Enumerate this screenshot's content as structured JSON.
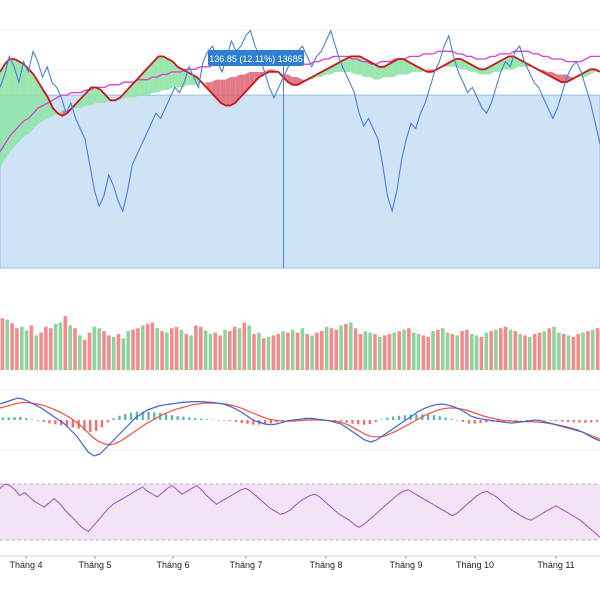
{
  "colors": {
    "background": "#ffffff",
    "range_band": "#cfe3f7",
    "price_line": "#4a7fd6",
    "ma_fast": "#c61818",
    "ma_slow": "#d93fd0",
    "cloud_bull": "#8fe3a6",
    "cloud_bear": "#e06a78",
    "vol_up": "#8fd29b",
    "vol_down": "#f28b8b",
    "macd_line": "#3e63d6",
    "signal_line": "#f0503c",
    "hist_up": "#5ab3b0",
    "hist_down": "#f06b6b",
    "rsi_band": "#f3e3f6",
    "rsi_line": "#a35ec0",
    "grid": "#eef0f3",
    "crosshair": "#4a7fd6",
    "tooltip_bg": "#2f7fd0",
    "tooltip_text": "#ffffff",
    "axis_text": "#222222"
  },
  "tooltip": {
    "text": "136.85 (12.11%) 13685"
  },
  "x_axis": {
    "ticks": [
      "Tháng 4",
      "Tháng 5",
      "Tháng 6",
      "Tháng 7",
      "Tháng 8",
      "Tháng 9",
      "Tháng 10",
      "Tháng 11"
    ]
  },
  "chart_data": [
    {
      "type": "line",
      "panel": "price",
      "title": "",
      "xlabel": "",
      "ylabel": "",
      "ylim": [
        0,
        100
      ],
      "x_ticks": [
        "Tháng 4",
        "Tháng 5",
        "Tháng 6",
        "Tháng 7",
        "Tháng 8",
        "Tháng 9",
        "Tháng 10",
        "Tháng 11"
      ],
      "highlight_band": [
        0,
        67
      ],
      "crosshair_index": 60,
      "series": [
        {
          "values": [
            70,
            75,
            82,
            78,
            72,
            80,
            76,
            84,
            80,
            74,
            78,
            72,
            70,
            66,
            60,
            64,
            58,
            54,
            50,
            40,
            30,
            24,
            28,
            36,
            32,
            26,
            22,
            30,
            40,
            44,
            48,
            52,
            56,
            60,
            58,
            62,
            66,
            70,
            68,
            72,
            78,
            74,
            70,
            80,
            84,
            86,
            80,
            76,
            82,
            88,
            84,
            86,
            90,
            92,
            86,
            82,
            76,
            70,
            66,
            70,
            74,
            78,
            80,
            84,
            86,
            82,
            78,
            82,
            84,
            88,
            92,
            86,
            80,
            76,
            72,
            68,
            60,
            55,
            58,
            54,
            50,
            40,
            28,
            22,
            30,
            42,
            50,
            56,
            54,
            60,
            64,
            70,
            76,
            80,
            86,
            90,
            82,
            76,
            72,
            68,
            70,
            66,
            62,
            60,
            64,
            70,
            76,
            80,
            78,
            84,
            86,
            80,
            76,
            72,
            70,
            66,
            62,
            58,
            62,
            68,
            74,
            78,
            80,
            76,
            70,
            64,
            56,
            48
          ]
        },
        {
          "values": [
            76,
            79,
            81,
            81,
            80,
            79,
            77,
            75,
            72,
            69,
            66,
            62,
            60,
            59,
            60,
            62,
            64,
            66,
            68,
            70,
            70,
            69,
            67,
            65,
            65,
            66,
            68,
            70,
            72,
            74,
            76,
            78,
            80,
            82,
            82,
            81,
            80,
            78,
            77,
            76,
            75,
            74,
            72,
            70,
            68,
            66,
            64,
            63,
            63,
            64,
            66,
            68,
            70,
            72,
            74,
            75,
            76,
            76,
            76,
            74,
            72,
            71,
            71,
            72,
            73,
            74,
            75,
            76,
            77,
            78,
            79,
            80,
            81,
            82,
            82,
            82,
            81,
            80,
            79,
            78,
            78,
            79,
            80,
            81,
            81,
            80,
            79,
            78,
            77,
            76,
            76,
            77,
            78,
            79,
            80,
            81,
            81,
            80,
            79,
            78,
            77,
            77,
            78,
            79,
            80,
            81,
            82,
            82,
            81,
            80,
            79,
            78,
            77,
            76,
            75,
            74,
            73,
            72,
            72,
            73,
            74,
            75,
            76,
            77,
            77,
            76
          ]
        },
        {
          "values": [
            45,
            48,
            51,
            53,
            55,
            57,
            58,
            60,
            62,
            63,
            64,
            65,
            66,
            67,
            67,
            68,
            68,
            68,
            69,
            69,
            70,
            70,
            70,
            71,
            71,
            71,
            72,
            72,
            72,
            73,
            73,
            73,
            74,
            74,
            75,
            75,
            76,
            76,
            76,
            77,
            77,
            77,
            78,
            78,
            78,
            79,
            79,
            79,
            80,
            80,
            81,
            81,
            82,
            82,
            82,
            82,
            83,
            83,
            82,
            81,
            81,
            80,
            80,
            79,
            79,
            79,
            80,
            80,
            81,
            81,
            82,
            82,
            82,
            82,
            81,
            81,
            80,
            80,
            79,
            79,
            80,
            80,
            80,
            81,
            81,
            81,
            82,
            82,
            82,
            83,
            83,
            83,
            84,
            84,
            84,
            84,
            83,
            83,
            82,
            82,
            81,
            81,
            81,
            82,
            82,
            83,
            83,
            83,
            84,
            84,
            84,
            84,
            83,
            83,
            82,
            82,
            81,
            81,
            81,
            80,
            80,
            80,
            80,
            81,
            82,
            82,
            82
          ]
        }
      ]
    },
    {
      "type": "bar",
      "panel": "volume",
      "title": "",
      "ylim": [
        0,
        100
      ],
      "values": [
        72,
        70,
        65,
        58,
        60,
        55,
        62,
        48,
        52,
        60,
        58,
        64,
        66,
        75,
        62,
        58,
        48,
        42,
        52,
        60,
        58,
        54,
        48,
        46,
        50,
        44,
        54,
        56,
        58,
        62,
        64,
        66,
        58,
        54,
        52,
        58,
        60,
        56,
        50,
        48,
        62,
        60,
        55,
        50,
        52,
        48,
        56,
        54,
        60,
        58,
        66,
        62,
        50,
        52,
        44,
        46,
        48,
        50,
        54,
        52,
        56,
        52,
        58,
        50,
        48,
        52,
        54,
        60,
        58,
        56,
        62,
        64,
        66,
        58,
        50,
        54,
        52,
        50,
        46,
        48,
        50,
        52,
        54,
        56,
        58,
        52,
        50,
        48,
        46,
        54,
        56,
        58,
        52,
        50,
        48,
        54,
        56,
        50,
        48,
        46,
        52,
        54,
        56,
        58,
        60,
        56,
        54,
        50,
        48,
        46,
        50,
        52,
        54,
        58,
        60,
        52,
        50,
        48,
        46,
        50,
        52,
        54,
        56,
        58
      ],
      "up": [
        0,
        1,
        0,
        0,
        1,
        1,
        0,
        1,
        0,
        0,
        0,
        1,
        1,
        0,
        1,
        0,
        1,
        0,
        0,
        1,
        1,
        0,
        0,
        1,
        0,
        1,
        1,
        0,
        0,
        1,
        0,
        0,
        1,
        0,
        1,
        0,
        0,
        1,
        0,
        1,
        0,
        0,
        1,
        1,
        0,
        0,
        1,
        0,
        0,
        1,
        0,
        1,
        0,
        1,
        0,
        1,
        0,
        0,
        1,
        0,
        1,
        0,
        1,
        0,
        1,
        0,
        0,
        1,
        0,
        0,
        1,
        0,
        1,
        0,
        0,
        1,
        1,
        0,
        1,
        0,
        0,
        1,
        0,
        1,
        0,
        1,
        1,
        0,
        0,
        1,
        0,
        1,
        1,
        0,
        1,
        0,
        0,
        1,
        1,
        0,
        1,
        0,
        1,
        0,
        0,
        1,
        0,
        1,
        0,
        1,
        0,
        0,
        1,
        0,
        1,
        1,
        0,
        1,
        0,
        0,
        1,
        0,
        1
      ]
    },
    {
      "type": "line",
      "panel": "macd",
      "title": "",
      "ylim": [
        -100,
        100
      ],
      "series": [
        {
          "values": [
            40,
            45,
            50,
            55,
            52,
            45,
            38,
            30,
            20,
            10,
            0,
            -10,
            -25,
            -40,
            -60,
            -80,
            -90,
            -85,
            -70,
            -55,
            -40,
            -25,
            -10,
            5,
            15,
            25,
            30,
            35,
            38,
            40,
            42,
            44,
            45,
            46,
            46,
            45,
            44,
            42,
            40,
            35,
            28,
            20,
            10,
            0,
            -5,
            -10,
            -12,
            -10,
            -6,
            -2,
            0,
            2,
            4,
            4,
            2,
            0,
            -2,
            -6,
            -10,
            -20,
            -30,
            -40,
            -50,
            -55,
            -50,
            -40,
            -30,
            -20,
            -10,
            0,
            10,
            20,
            28,
            34,
            38,
            40,
            38,
            34,
            28,
            20,
            10,
            5,
            2,
            0,
            -2,
            -4,
            -6,
            -8,
            -6,
            -4,
            -2,
            0,
            -2,
            -6,
            -10,
            -14,
            -18,
            -22,
            -26,
            -30,
            -38,
            -46,
            -52
          ]
        },
        {
          "values": [
            30,
            34,
            38,
            42,
            44,
            43,
            41,
            38,
            34,
            28,
            22,
            14,
            6,
            -4,
            -16,
            -30,
            -44,
            -54,
            -60,
            -62,
            -58,
            -50,
            -40,
            -30,
            -20,
            -10,
            -2,
            6,
            14,
            20,
            26,
            30,
            34,
            38,
            40,
            42,
            42,
            42,
            41,
            39,
            36,
            32,
            26,
            20,
            14,
            8,
            3,
            0,
            -2,
            -3,
            -3,
            -2,
            -1,
            0,
            0,
            0,
            -1,
            -2,
            -4,
            -8,
            -14,
            -22,
            -30,
            -38,
            -42,
            -42,
            -40,
            -34,
            -28,
            -20,
            -12,
            -4,
            4,
            12,
            18,
            24,
            28,
            30,
            30,
            28,
            25,
            20,
            15,
            10,
            6,
            3,
            0,
            -2,
            -3,
            -4,
            -4,
            -4,
            -5,
            -6,
            -8,
            -10,
            -13,
            -16,
            -20,
            -24,
            -30,
            -36,
            -42,
            -48
          ]
        }
      ],
      "histogram": [
        10,
        11,
        12,
        13,
        8,
        2,
        -3,
        -8,
        -14,
        -18,
        -22,
        -24,
        -31,
        -36,
        -44,
        -50,
        -46,
        -31,
        -10,
        7,
        18,
        25,
        30,
        35,
        35,
        35,
        32,
        29,
        24,
        20,
        16,
        14,
        11,
        8,
        6,
        3,
        2,
        0,
        -1,
        -4,
        -8,
        -12,
        -16,
        -20,
        -19,
        -18,
        -15,
        -10,
        -4,
        1,
        3,
        4,
        5,
        4,
        2,
        0,
        -1,
        -4,
        -6,
        -12,
        -16,
        -18,
        -20,
        -17,
        -8,
        2,
        10,
        14,
        18,
        20,
        22,
        24,
        24,
        22,
        20,
        16,
        10,
        4,
        -2,
        -8,
        -15,
        -15,
        -13,
        -10,
        -8,
        -7,
        -6,
        -6,
        -4,
        -2,
        0,
        2,
        1,
        -1,
        -3,
        -5,
        -7,
        -9,
        -10,
        -11,
        -12,
        -10,
        -8
      ]
    },
    {
      "type": "line",
      "panel": "rsi",
      "title": "",
      "ylim": [
        0,
        100
      ],
      "series": [
        {
          "values": [
            80,
            86,
            84,
            78,
            70,
            74,
            68,
            62,
            58,
            54,
            60,
            66,
            60,
            52,
            44,
            38,
            30,
            24,
            20,
            28,
            36,
            44,
            52,
            58,
            62,
            66,
            70,
            74,
            78,
            82,
            76,
            72,
            68,
            74,
            80,
            84,
            78,
            72,
            76,
            80,
            84,
            78,
            70,
            64,
            58,
            62,
            66,
            70,
            74,
            78,
            80,
            76,
            70,
            64,
            58,
            52,
            48,
            44,
            46,
            50,
            56,
            62,
            66,
            70,
            72,
            68,
            62,
            56,
            50,
            44,
            40,
            36,
            30,
            26,
            30,
            36,
            42,
            48,
            54,
            60,
            66,
            72,
            76,
            78,
            74,
            70,
            66,
            62,
            58,
            54,
            50,
            46,
            42,
            46,
            52,
            58,
            64,
            70,
            74,
            76,
            72,
            68,
            62,
            56,
            50,
            46,
            42,
            38,
            36,
            40,
            44,
            48,
            52,
            56,
            52,
            48,
            44,
            40,
            36,
            30,
            24,
            18,
            12
          ]
        }
      ]
    }
  ]
}
